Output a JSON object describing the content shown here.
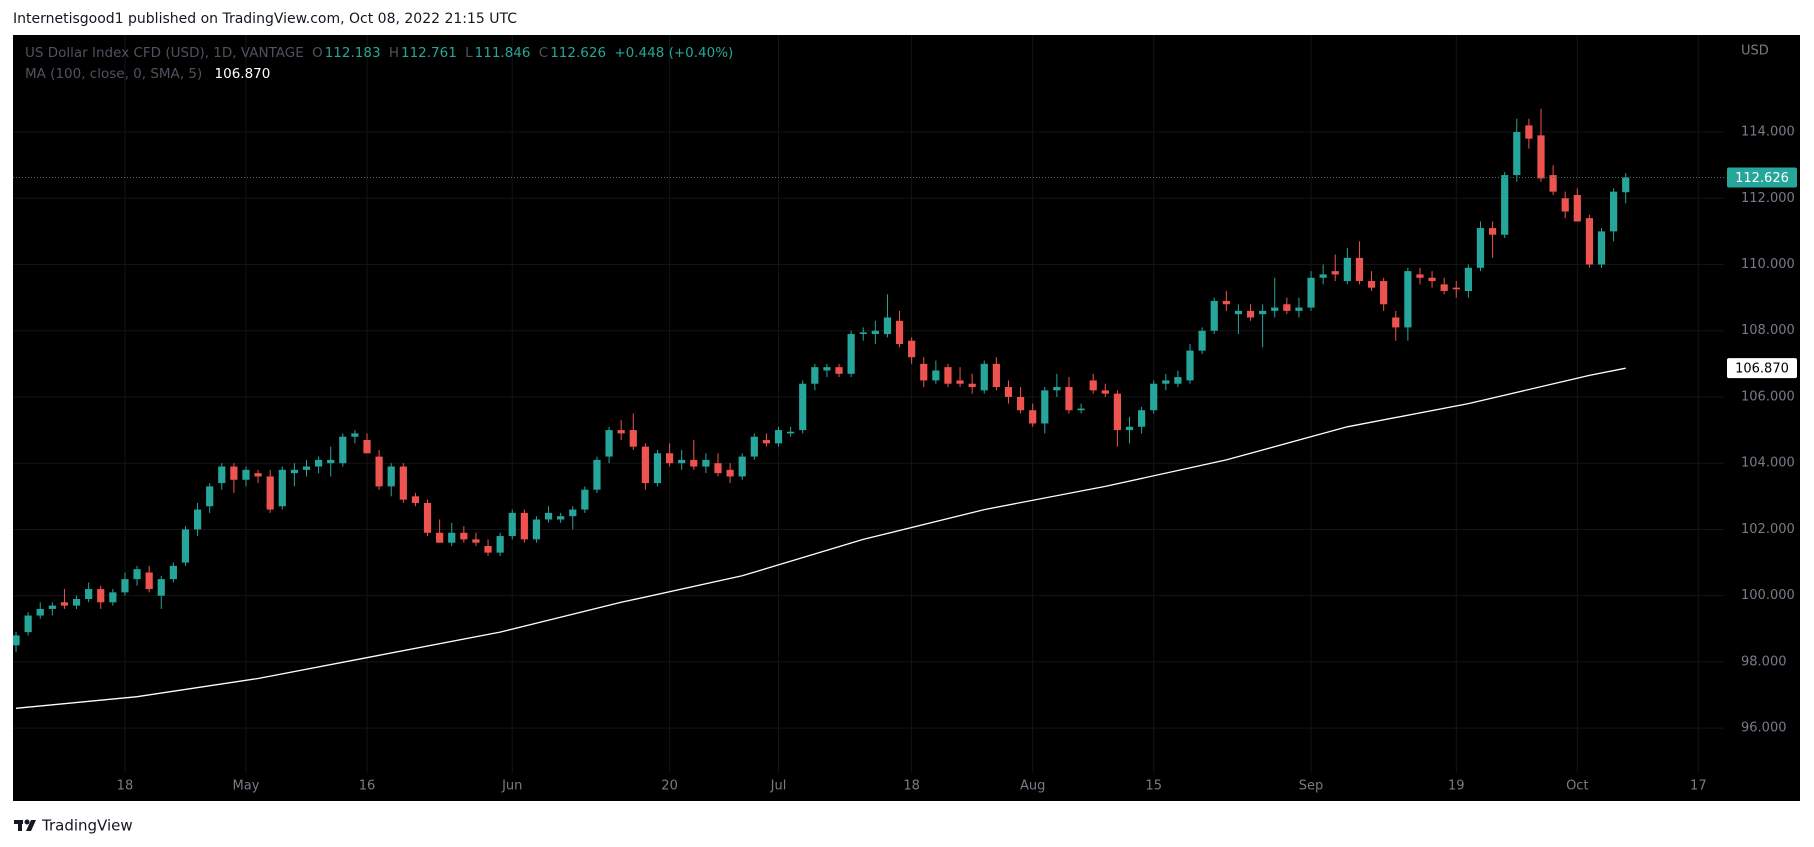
{
  "header": {
    "text": "Internetisgood1 published on TradingView.com, Oct 08, 2022 21:15 UTC"
  },
  "chart_data": {
    "type": "candlestick",
    "legend": {
      "symbol": "US Dollar Index CFD (USD), 1D, VANTAGE",
      "ohlc_labels": [
        "O",
        "H",
        "L",
        "C"
      ],
      "change": "+0.448 (+0.40%)"
    },
    "currency": "USD",
    "up_color": "#26a69a",
    "down_color": "#ef5350",
    "ohlc": [
      [
        98.5,
        98.9,
        98.3,
        98.8
      ],
      [
        98.9,
        99.5,
        98.8,
        99.4
      ],
      [
        99.4,
        99.8,
        99.3,
        99.6
      ],
      [
        99.6,
        99.8,
        99.4,
        99.7
      ],
      [
        99.8,
        100.2,
        99.6,
        99.7
      ],
      [
        99.7,
        100.0,
        99.6,
        99.9
      ],
      [
        99.9,
        100.4,
        99.8,
        100.2
      ],
      [
        100.2,
        100.3,
        99.6,
        99.8
      ],
      [
        99.8,
        100.2,
        99.7,
        100.1
      ],
      [
        100.1,
        100.7,
        100.0,
        100.5
      ],
      [
        100.5,
        100.9,
        100.3,
        100.8
      ],
      [
        100.7,
        100.9,
        100.1,
        100.2
      ],
      [
        100.0,
        100.6,
        99.6,
        100.5
      ],
      [
        100.5,
        101.0,
        100.4,
        100.9
      ],
      [
        101.0,
        102.1,
        100.9,
        102.0
      ],
      [
        102.0,
        102.8,
        101.8,
        102.6
      ],
      [
        102.7,
        103.4,
        102.5,
        103.3
      ],
      [
        103.4,
        104.0,
        103.2,
        103.9
      ],
      [
        103.9,
        104.0,
        103.1,
        103.5
      ],
      [
        103.5,
        103.9,
        103.3,
        103.8
      ],
      [
        103.7,
        103.8,
        103.4,
        103.6
      ],
      [
        103.6,
        103.8,
        102.5,
        102.6
      ],
      [
        102.7,
        103.9,
        102.6,
        103.8
      ],
      [
        103.7,
        104.0,
        103.3,
        103.8
      ],
      [
        103.8,
        104.1,
        103.6,
        103.9
      ],
      [
        103.9,
        104.2,
        103.7,
        104.1
      ],
      [
        104.0,
        104.5,
        103.6,
        104.1
      ],
      [
        104.0,
        104.9,
        103.9,
        104.8
      ],
      [
        104.8,
        105.0,
        104.6,
        104.9
      ],
      [
        104.7,
        104.9,
        104.3,
        104.3
      ],
      [
        104.2,
        104.4,
        103.2,
        103.3
      ],
      [
        103.3,
        104.0,
        103.0,
        103.9
      ],
      [
        103.9,
        104.0,
        102.8,
        102.9
      ],
      [
        103.0,
        103.1,
        102.7,
        102.8
      ],
      [
        102.8,
        102.9,
        101.8,
        101.9
      ],
      [
        101.9,
        102.3,
        101.6,
        101.6
      ],
      [
        101.6,
        102.2,
        101.5,
        101.9
      ],
      [
        101.9,
        102.1,
        101.6,
        101.7
      ],
      [
        101.7,
        101.9,
        101.5,
        101.6
      ],
      [
        101.5,
        101.7,
        101.2,
        101.3
      ],
      [
        101.3,
        101.9,
        101.2,
        101.8
      ],
      [
        101.8,
        102.6,
        101.7,
        102.5
      ],
      [
        102.5,
        102.6,
        101.6,
        101.7
      ],
      [
        101.7,
        102.4,
        101.6,
        102.3
      ],
      [
        102.3,
        102.7,
        102.2,
        102.5
      ],
      [
        102.3,
        102.5,
        102.2,
        102.4
      ],
      [
        102.4,
        102.7,
        102.0,
        102.6
      ],
      [
        102.6,
        103.3,
        102.5,
        103.2
      ],
      [
        103.2,
        104.2,
        103.1,
        104.1
      ],
      [
        104.2,
        105.1,
        104.0,
        105.0
      ],
      [
        105.0,
        105.3,
        104.7,
        104.9
      ],
      [
        105.0,
        105.5,
        104.4,
        104.5
      ],
      [
        104.5,
        104.6,
        103.2,
        103.4
      ],
      [
        103.4,
        104.4,
        103.3,
        104.3
      ],
      [
        104.3,
        104.6,
        103.9,
        104.0
      ],
      [
        104.0,
        104.4,
        103.8,
        104.1
      ],
      [
        104.1,
        104.7,
        103.8,
        103.9
      ],
      [
        103.9,
        104.3,
        103.7,
        104.1
      ],
      [
        104.0,
        104.3,
        103.6,
        103.7
      ],
      [
        103.8,
        104.0,
        103.4,
        103.6
      ],
      [
        103.6,
        104.3,
        103.5,
        104.2
      ],
      [
        104.2,
        104.9,
        104.1,
        104.8
      ],
      [
        104.7,
        104.9,
        104.5,
        104.6
      ],
      [
        104.6,
        105.1,
        104.5,
        105.0
      ],
      [
        104.9,
        105.1,
        104.8,
        104.95
      ],
      [
        105.0,
        106.5,
        104.9,
        106.4
      ],
      [
        106.4,
        107.0,
        106.2,
        106.9
      ],
      [
        106.8,
        107.0,
        106.6,
        106.9
      ],
      [
        106.9,
        107.0,
        106.6,
        106.7
      ],
      [
        106.7,
        108.0,
        106.6,
        107.9
      ],
      [
        107.9,
        108.1,
        107.7,
        107.95
      ],
      [
        107.9,
        108.3,
        107.6,
        108.0
      ],
      [
        107.9,
        109.1,
        107.8,
        108.4
      ],
      [
        108.3,
        108.6,
        107.5,
        107.6
      ],
      [
        107.7,
        107.8,
        107.0,
        107.2
      ],
      [
        107.0,
        107.2,
        106.3,
        106.5
      ],
      [
        106.5,
        107.1,
        106.4,
        106.8
      ],
      [
        106.9,
        107.0,
        106.3,
        106.4
      ],
      [
        106.5,
        106.9,
        106.3,
        106.4
      ],
      [
        106.4,
        106.7,
        106.1,
        106.3
      ],
      [
        106.2,
        107.1,
        106.1,
        107.0
      ],
      [
        107.0,
        107.2,
        106.2,
        106.3
      ],
      [
        106.3,
        106.5,
        105.8,
        106.0
      ],
      [
        106.0,
        106.3,
        105.5,
        105.6
      ],
      [
        105.6,
        105.8,
        105.1,
        105.2
      ],
      [
        105.2,
        106.3,
        104.9,
        106.2
      ],
      [
        106.2,
        106.7,
        106.0,
        106.3
      ],
      [
        106.3,
        106.6,
        105.5,
        105.6
      ],
      [
        105.6,
        105.8,
        105.5,
        105.65
      ],
      [
        106.5,
        106.7,
        106.1,
        106.2
      ],
      [
        106.2,
        106.4,
        106.0,
        106.1
      ],
      [
        106.1,
        106.2,
        104.5,
        105.0
      ],
      [
        105.0,
        105.4,
        104.6,
        105.1
      ],
      [
        105.1,
        105.7,
        104.9,
        105.6
      ],
      [
        105.6,
        106.5,
        105.5,
        106.4
      ],
      [
        106.4,
        106.7,
        106.2,
        106.5
      ],
      [
        106.4,
        106.8,
        106.3,
        106.6
      ],
      [
        106.5,
        107.6,
        106.4,
        107.4
      ],
      [
        107.4,
        108.1,
        107.3,
        108.0
      ],
      [
        108.0,
        109.0,
        107.9,
        108.9
      ],
      [
        108.9,
        109.2,
        108.6,
        108.8
      ],
      [
        108.5,
        108.8,
        107.9,
        108.6
      ],
      [
        108.6,
        108.8,
        108.3,
        108.4
      ],
      [
        108.5,
        108.8,
        107.5,
        108.6
      ],
      [
        108.6,
        109.6,
        108.4,
        108.7
      ],
      [
        108.8,
        109.0,
        108.5,
        108.6
      ],
      [
        108.6,
        109.0,
        108.4,
        108.7
      ],
      [
        108.7,
        109.8,
        108.6,
        109.6
      ],
      [
        109.6,
        110.0,
        109.4,
        109.7
      ],
      [
        109.8,
        110.3,
        109.5,
        109.7
      ],
      [
        109.5,
        110.5,
        109.4,
        110.2
      ],
      [
        110.2,
        110.7,
        109.4,
        109.5
      ],
      [
        109.5,
        109.8,
        109.2,
        109.3
      ],
      [
        109.5,
        109.6,
        108.6,
        108.8
      ],
      [
        108.4,
        108.6,
        107.7,
        108.1
      ],
      [
        108.1,
        109.9,
        107.7,
        109.8
      ],
      [
        109.7,
        109.9,
        109.4,
        109.6
      ],
      [
        109.6,
        109.8,
        109.3,
        109.5
      ],
      [
        109.4,
        109.6,
        109.1,
        109.2
      ],
      [
        109.3,
        109.5,
        109.0,
        109.25
      ],
      [
        109.2,
        110.0,
        109.0,
        109.9
      ],
      [
        109.9,
        111.3,
        109.8,
        111.1
      ],
      [
        111.1,
        111.3,
        110.2,
        110.9
      ],
      [
        110.9,
        112.8,
        110.8,
        112.7
      ],
      [
        112.7,
        114.4,
        112.5,
        114.0
      ],
      [
        114.2,
        114.4,
        113.5,
        113.8
      ],
      [
        113.9,
        114.7,
        112.5,
        112.6
      ],
      [
        112.7,
        113.0,
        112.1,
        112.2
      ],
      [
        112.0,
        112.2,
        111.4,
        111.6
      ],
      [
        112.1,
        112.3,
        111.3,
        111.3
      ],
      [
        111.4,
        111.5,
        109.9,
        110.0
      ],
      [
        110.0,
        111.1,
        109.9,
        111.0
      ],
      [
        111.0,
        112.3,
        110.7,
        112.2
      ],
      [
        112.183,
        112.761,
        111.846,
        112.626
      ]
    ],
    "ma": {
      "name": "MA (100, close, 0, SMA, 5)",
      "color": "#ffffff",
      "x": [
        0,
        10,
        20,
        30,
        40,
        50,
        60,
        70,
        80,
        90,
        100,
        110,
        120,
        130,
        133
      ],
      "values": [
        96.6,
        96.95,
        97.5,
        98.2,
        98.9,
        99.8,
        100.6,
        101.7,
        102.6,
        103.3,
        104.1,
        105.1,
        105.8,
        106.65,
        106.87
      ],
      "last_label": "106.870"
    },
    "xlim": [
      -0.25,
      147.4
    ],
    "xticks": [
      {
        "value": 9,
        "label": "18"
      },
      {
        "value": 19,
        "label": "May"
      },
      {
        "value": 29,
        "label": "16"
      },
      {
        "value": 41,
        "label": "Jun"
      },
      {
        "value": 54,
        "label": "20"
      },
      {
        "value": 63,
        "label": "Jul"
      },
      {
        "value": 74,
        "label": "18"
      },
      {
        "value": 84,
        "label": "Aug"
      },
      {
        "value": 94,
        "label": "15"
      },
      {
        "value": 107,
        "label": "Sep"
      },
      {
        "value": 119,
        "label": "19"
      },
      {
        "value": 129,
        "label": "Oct"
      },
      {
        "value": 139,
        "label": "17"
      }
    ],
    "ylim": [
      93.8,
      116.93
    ],
    "yticks": [
      {
        "value": 96,
        "label": "96.000"
      },
      {
        "value": 98,
        "label": "98.000"
      },
      {
        "value": 100,
        "label": "100.000"
      },
      {
        "value": 102,
        "label": "102.000"
      },
      {
        "value": 104,
        "label": "104.000"
      },
      {
        "value": 106,
        "label": "106.000"
      },
      {
        "value": 108,
        "label": "108.000"
      },
      {
        "value": 110,
        "label": "110.000"
      },
      {
        "value": 112,
        "label": "112.000"
      },
      {
        "value": 114,
        "label": "114.000"
      }
    ],
    "grid": true
  },
  "footer": {
    "brand": "TradingView"
  }
}
